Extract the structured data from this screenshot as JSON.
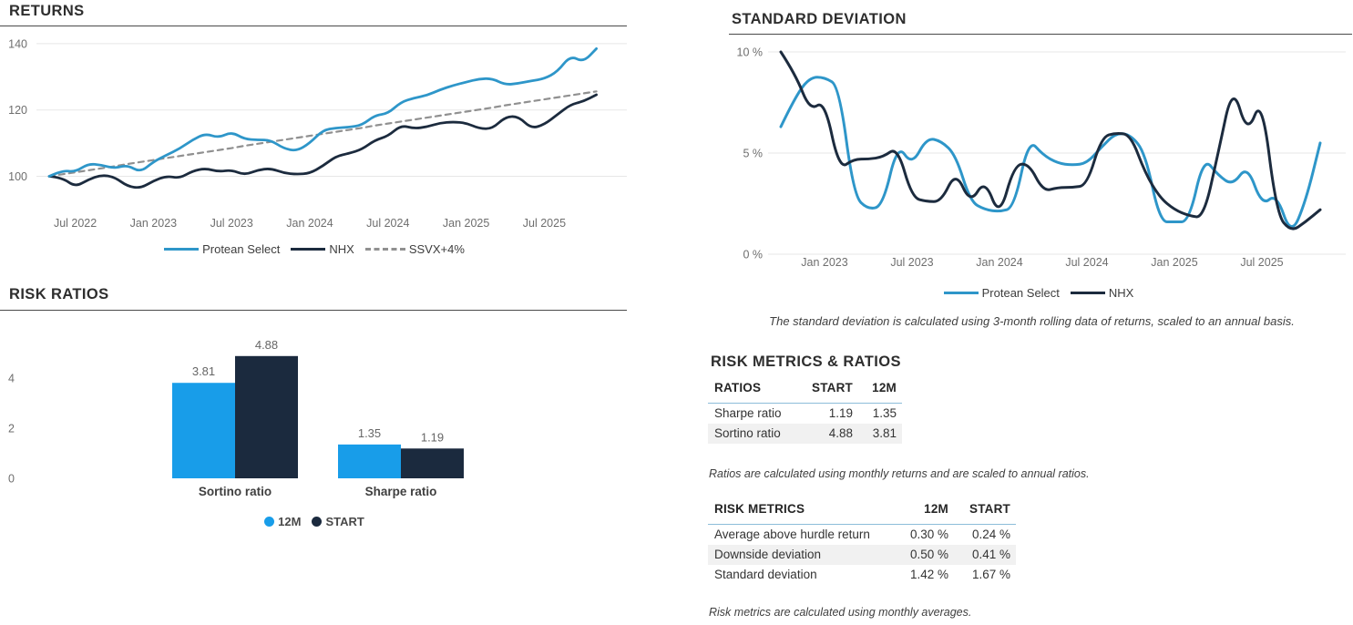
{
  "colors": {
    "line_blue": "#2E96C9",
    "navy": "#1C2B3E",
    "bar_blue": "#189DE9",
    "bar_navy": "#1B2A3E",
    "dashed_gray": "#909090",
    "grid": "#E7E7E7",
    "axis_text": "#6E6E6E",
    "table_rule_blue": "#8DBDD9",
    "zebra_row": "#F1F1F1"
  },
  "returns_section": {
    "title": "RETURNS",
    "legend": [
      "Protean Select",
      "NHX",
      "SSVX+4%"
    ]
  },
  "risk_ratios_section": {
    "title": "RISK RATIOS",
    "legend": [
      "12M",
      "START"
    ]
  },
  "stddev_section": {
    "title": "STANDARD DEVIATION",
    "legend": [
      "Protean Select",
      "NHX"
    ],
    "footnote": "The standard deviation is calculated using 3-month rolling data of returns, scaled to an annual basis."
  },
  "risk_tables_section": {
    "title": "RISK METRICS & RATIOS",
    "ratios_table": {
      "headers": [
        "RATIOS",
        "START",
        "12M"
      ],
      "rows": [
        [
          "Sharpe ratio",
          "1.19",
          "1.35"
        ],
        [
          "Sortino ratio",
          "4.88",
          "3.81"
        ]
      ],
      "footnote": "Ratios are calculated using monthly returns and are scaled to annual ratios."
    },
    "metrics_table": {
      "headers": [
        "RISK METRICS",
        "12M",
        "START"
      ],
      "rows": [
        [
          "Average above hurdle return",
          "0.30 %",
          "0.24 %"
        ],
        [
          "Downside deviation",
          "0.50 %",
          "0.41 %"
        ],
        [
          "Standard deviation",
          "1.42 %",
          "1.67 %"
        ]
      ],
      "footnote": "Risk metrics are calculated using monthly averages."
    }
  },
  "chart_data": [
    {
      "id": "returns",
      "type": "line",
      "title": "RETURNS",
      "x_unit": "month",
      "x_ticks": [
        {
          "label": "Jul 2022",
          "i": 2
        },
        {
          "label": "Jan 2023",
          "i": 8
        },
        {
          "label": "Jul 2023",
          "i": 14
        },
        {
          "label": "Jan 2024",
          "i": 20
        },
        {
          "label": "Jul 2024",
          "i": 26
        },
        {
          "label": "Jan 2025",
          "i": 32
        },
        {
          "label": "Jul 2025",
          "i": 38
        }
      ],
      "y_ticks": [
        100,
        120,
        140
      ],
      "y_tick_labels": [
        "100",
        "120",
        "140"
      ],
      "ylim": [
        95,
        142
      ],
      "grid": true,
      "legend_position": "bottom",
      "series": [
        {
          "name": "Protean Select",
          "color": "#2E96C9",
          "style": "solid",
          "values": [
            100,
            101.8,
            101.3,
            103.8,
            103.4,
            102.4,
            103.4,
            101.2,
            104.4,
            106.4,
            108.3,
            111.0,
            112.9,
            111.6,
            113.4,
            111.2,
            111.0,
            110.9,
            108.4,
            107.6,
            110.0,
            113.9,
            114.6,
            114.8,
            115.4,
            118.4,
            118.9,
            122.4,
            123.6,
            124.4,
            126.1,
            127.4,
            128.4,
            129.4,
            129.5,
            127.6,
            128.0,
            128.8,
            129.4,
            131.5,
            136.4,
            134.4,
            138.5
          ]
        },
        {
          "name": "NHX",
          "color": "#1C2B3E",
          "style": "solid",
          "values": [
            100,
            99.6,
            96.8,
            99.0,
            100.4,
            99.8,
            97.0,
            96.4,
            98.6,
            100.1,
            99.4,
            101.6,
            102.4,
            101.4,
            101.9,
            100.4,
            101.9,
            102.4,
            101.0,
            100.6,
            100.9,
            103.1,
            106.0,
            106.9,
            108.1,
            110.9,
            112.1,
            115.4,
            114.4,
            114.9,
            116.1,
            116.4,
            116.1,
            114.4,
            114.3,
            117.9,
            118.1,
            114.4,
            115.6,
            118.6,
            121.6,
            122.6,
            124.6
          ]
        },
        {
          "name": "SSVX+4%",
          "color": "#909090",
          "style": "dashed",
          "values": [
            100.0,
            100.6,
            101.2,
            101.8,
            102.4,
            103.0,
            103.7,
            104.3,
            104.9,
            105.5,
            106.1,
            106.7,
            107.3,
            107.9,
            108.5,
            109.2,
            109.8,
            110.4,
            111.0,
            111.6,
            112.2,
            112.8,
            113.4,
            114.0,
            114.6,
            115.3,
            115.9,
            116.5,
            117.1,
            117.7,
            118.3,
            118.9,
            119.5,
            120.1,
            120.7,
            121.4,
            122.0,
            122.6,
            123.2,
            123.8,
            124.4,
            125.0,
            125.6
          ]
        }
      ]
    },
    {
      "id": "stddev",
      "type": "line",
      "title": "STANDARD DEVIATION",
      "x_unit": "month",
      "x_ticks": [
        {
          "label": "Jan 2023",
          "i": 3
        },
        {
          "label": "Jul 2023",
          "i": 9
        },
        {
          "label": "Jan 2024",
          "i": 15
        },
        {
          "label": "Jul 2024",
          "i": 21
        },
        {
          "label": "Jan 2025",
          "i": 27
        },
        {
          "label": "Jul 2025",
          "i": 33
        }
      ],
      "y_ticks": [
        0,
        5,
        10
      ],
      "y_tick_labels": [
        "0 %",
        "5 %",
        "10 %"
      ],
      "ylim": [
        0,
        10.5
      ],
      "grid": true,
      "legend_position": "bottom",
      "series": [
        {
          "name": "Protean Select",
          "color": "#2E96C9",
          "style": "solid",
          "values": [
            6.3,
            7.8,
            8.75,
            8.75,
            8.3,
            2.9,
            2.2,
            2.4,
            5.45,
            4.4,
            5.75,
            5.6,
            4.9,
            2.6,
            2.2,
            2.1,
            2.3,
            5.7,
            4.9,
            4.5,
            4.4,
            4.5,
            5.3,
            6.0,
            5.9,
            5.0,
            1.6,
            1.6,
            1.6,
            4.8,
            3.9,
            3.4,
            4.4,
            2.4,
            3.0,
            0.9,
            2.6,
            5.5
          ]
        },
        {
          "name": "NHX",
          "color": "#1C2B3E",
          "style": "solid",
          "values": [
            10.0,
            8.9,
            7.1,
            7.6,
            4.2,
            4.7,
            4.7,
            4.8,
            5.3,
            2.8,
            2.6,
            2.6,
            4.1,
            2.5,
            3.7,
            1.8,
            4.4,
            4.5,
            3.1,
            3.3,
            3.3,
            3.4,
            5.8,
            6.0,
            5.9,
            4.0,
            2.8,
            2.2,
            1.9,
            1.8,
            5.0,
            8.4,
            5.9,
            7.8,
            2.0,
            1.1,
            1.6,
            2.2
          ]
        }
      ]
    },
    {
      "id": "risk_ratios",
      "type": "bar",
      "title": "RISK RATIOS",
      "categories": [
        "Sortino ratio",
        "Sharpe ratio"
      ],
      "series": [
        {
          "name": "12M",
          "color": "#189DE9",
          "values": [
            3.81,
            1.35
          ]
        },
        {
          "name": "START",
          "color": "#1B2A3E",
          "values": [
            4.88,
            1.19
          ]
        }
      ],
      "value_labels": [
        [
          "3.81",
          "1.35"
        ],
        [
          "4.88",
          "1.19"
        ]
      ],
      "y_ticks": [
        0,
        2,
        4
      ],
      "y_tick_labels": [
        "0",
        "2",
        "4"
      ],
      "ylim": [
        0,
        5.5
      ],
      "legend_position": "bottom"
    }
  ]
}
